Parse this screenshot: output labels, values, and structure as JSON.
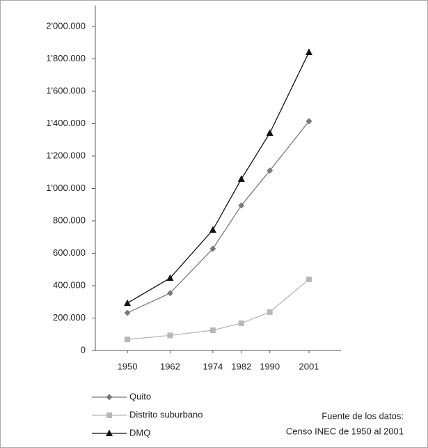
{
  "chart_data": {
    "type": "line",
    "x": [
      1950,
      1962,
      1974,
      1982,
      1990,
      2001
    ],
    "xlim": [
      1941,
      2010
    ],
    "xticks": [
      1950,
      1962,
      1974,
      1982,
      1990,
      2001
    ],
    "ylim": [
      0,
      2000000
    ],
    "yticks": [
      0,
      {
        "value": 200000,
        "label": "200.000"
      },
      {
        "value": 400000,
        "label": "400.000"
      },
      {
        "value": 600000,
        "label": "600.000"
      },
      {
        "value": 800000,
        "label": "800.000"
      },
      {
        "value": 1000000,
        "label": "1'000.000"
      },
      {
        "value": 1200000,
        "label": "1'200.000"
      },
      {
        "value": 1400000,
        "label": "1'400.000"
      },
      {
        "value": 1600000,
        "label": "1'600.000"
      },
      {
        "value": 1800000,
        "label": "1'800.000"
      },
      {
        "value": 2000000,
        "label": "2'000.000"
      }
    ],
    "grid": false,
    "legend": "bottom-left",
    "series": [
      {
        "name": "Quito",
        "color": "#7a7a7a",
        "marker": "diamond",
        "values": [
          232000,
          354000,
          628000,
          895000,
          1110000,
          1415000
        ]
      },
      {
        "name": "Distrito suburbano",
        "color": "#b8b8b8",
        "marker": "square",
        "values": [
          68000,
          93000,
          125000,
          168000,
          237000,
          439000
        ]
      },
      {
        "name": "DMQ",
        "color": "#111111",
        "marker": "triangle",
        "values": [
          292000,
          447000,
          744000,
          1058000,
          1342000,
          1841000
        ]
      }
    ],
    "annotations": [
      "Fuente de los datos:",
      "Censo INEC de 1950 al 2001"
    ]
  }
}
